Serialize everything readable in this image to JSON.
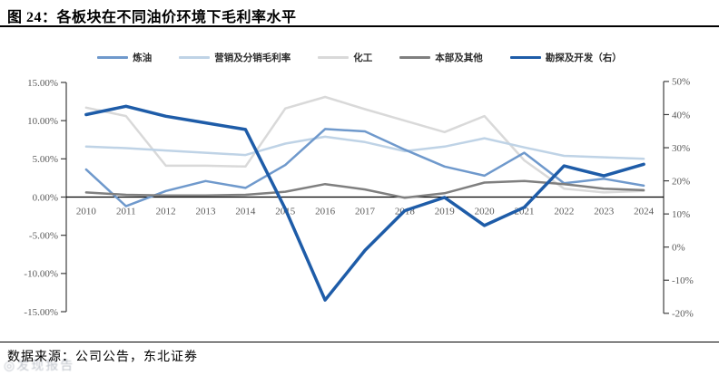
{
  "header": {
    "title": "图 24：各板块在不同油价环境下毛利率水平"
  },
  "footer": {
    "source": "数据来源：公司公告，东北证券",
    "watermark": "发现报告"
  },
  "chart_data": {
    "type": "line",
    "title": "图 24：各板块在不同油价环境下毛利率水平",
    "categories": [
      "2010",
      "2011",
      "2012",
      "2013",
      "2014",
      "2015",
      "2016",
      "2017",
      "2018",
      "2019",
      "2020",
      "2021",
      "2022",
      "2023",
      "2024"
    ],
    "series": [
      {
        "name": "炼油",
        "axis": "left",
        "color": "#6F99CC",
        "width": 2.5,
        "values": [
          3.6,
          -1.2,
          0.8,
          2.1,
          1.2,
          4.2,
          8.9,
          8.6,
          6.2,
          4.0,
          2.8,
          5.8,
          1.8,
          2.4,
          1.5
        ]
      },
      {
        "name": "营销及分销毛利率",
        "axis": "left",
        "color": "#BFD3E6",
        "width": 2.5,
        "values": [
          6.6,
          6.4,
          6.1,
          5.8,
          5.5,
          7.0,
          7.9,
          7.2,
          6.0,
          6.6,
          7.7,
          6.5,
          5.4,
          5.2,
          5.0
        ]
      },
      {
        "name": "化工",
        "axis": "left",
        "color": "#D9D9D9",
        "width": 2.5,
        "values": [
          11.7,
          10.6,
          4.1,
          4.1,
          4.0,
          11.6,
          13.1,
          11.5,
          10.0,
          8.5,
          10.6,
          4.8,
          1.1,
          0.6,
          0.8
        ]
      },
      {
        "name": "本部及其他",
        "axis": "left",
        "color": "#7F7F7F",
        "width": 2.5,
        "values": [
          0.6,
          0.3,
          0.2,
          0.2,
          0.3,
          0.7,
          1.7,
          1.0,
          -0.1,
          0.5,
          1.9,
          2.1,
          1.7,
          1.1,
          0.9
        ]
      },
      {
        "name": "勘探及开发（右）",
        "axis": "right",
        "color": "#1E5CA8",
        "width": 3.5,
        "values": [
          40,
          42.5,
          39.5,
          37.5,
          35.5,
          11.5,
          -16,
          -1,
          11,
          15,
          6.5,
          12,
          24.5,
          21.5,
          25
        ]
      }
    ],
    "left_axis": {
      "min": -15,
      "max": 15,
      "step": 5,
      "tick_labels": [
        "15.00%",
        "10.00%",
        "5.00%",
        "0.00%",
        "-5.00%",
        "-10.00%",
        "-15.00%"
      ]
    },
    "right_axis": {
      "min": -20,
      "max": 50,
      "step": 10,
      "tick_labels": [
        "50%",
        "40%",
        "30%",
        "20%",
        "10%",
        "0%",
        "-10%",
        "-20%"
      ]
    },
    "legend_position": "top",
    "grid": false
  }
}
